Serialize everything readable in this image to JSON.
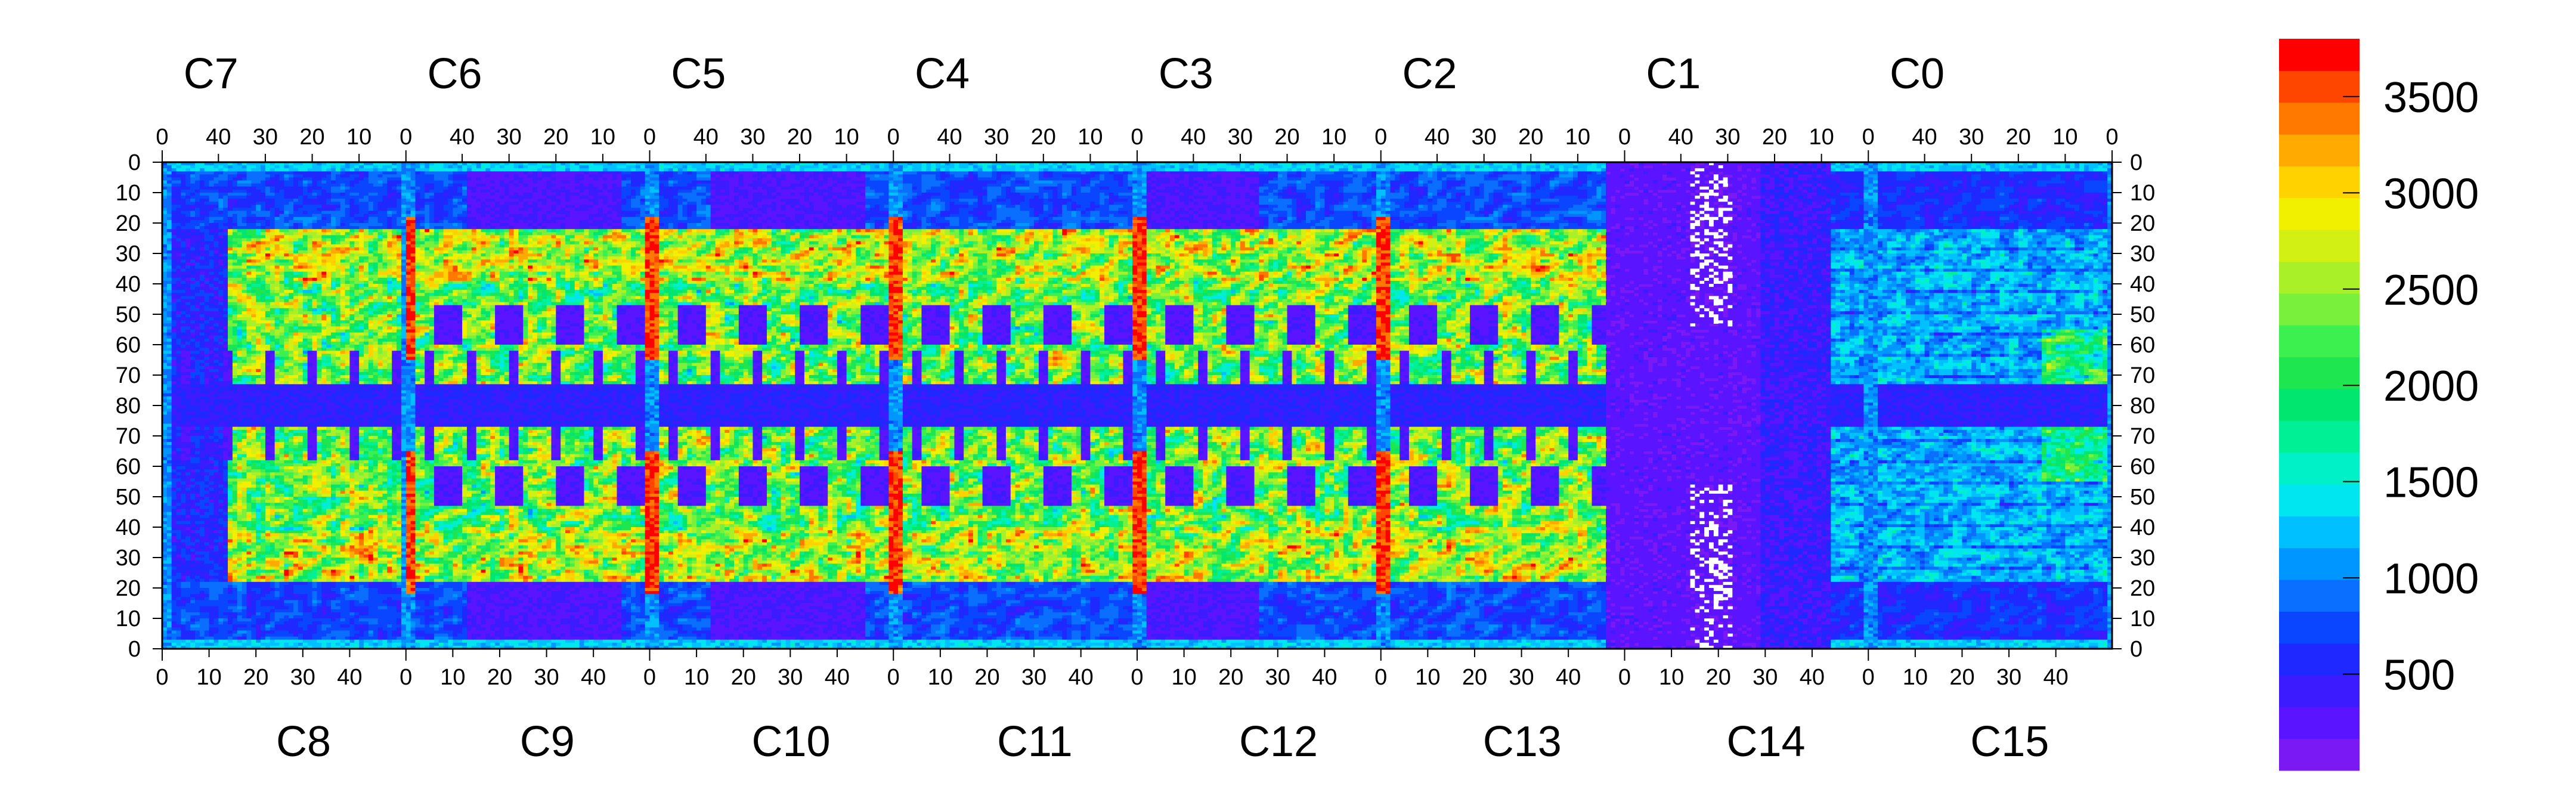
{
  "chart_data": {
    "type": "heatmap",
    "title": "",
    "xlabel": "",
    "ylabel": "",
    "top_chip_labels": [
      "C7",
      "C6",
      "C5",
      "C4",
      "C3",
      "C2",
      "C1",
      "C0"
    ],
    "bottom_chip_labels": [
      "C8",
      "C9",
      "C10",
      "C11",
      "C12",
      "C13",
      "C14",
      "C15"
    ],
    "top_tick_labels": [
      "40",
      "30",
      "20",
      "10",
      "0"
    ],
    "bottom_tick_labels": [
      "0",
      "10",
      "20",
      "30",
      "40"
    ],
    "last_top_tick": "0",
    "y_tick_labels": [
      "0",
      "10",
      "20",
      "30",
      "40",
      "50",
      "60",
      "70",
      "80",
      "70",
      "60",
      "50",
      "40",
      "30",
      "20",
      "10",
      "0"
    ],
    "chip_columns": 52,
    "chip_rows": 80,
    "colorbar": {
      "min": 0,
      "max": 3800,
      "tick_values": [
        500,
        1000,
        1500,
        2000,
        2500,
        3000,
        3500
      ],
      "tick_labels": [
        "500",
        "1000",
        "1500",
        "2000",
        "2500",
        "3000",
        "3500"
      ],
      "colors": [
        "#7b19f5",
        "#5a14ff",
        "#3c1cff",
        "#1e28ff",
        "#0a46ff",
        "#0a6eff",
        "#0096ff",
        "#00c0ff",
        "#00e6f0",
        "#00f0c8",
        "#00f096",
        "#00e66e",
        "#1ee650",
        "#3cf050",
        "#78f03c",
        "#aaf028",
        "#d2f014",
        "#f0f000",
        "#ffd200",
        "#ffaa00",
        "#ff7800",
        "#ff4600",
        "#ff0000"
      ]
    }
  }
}
